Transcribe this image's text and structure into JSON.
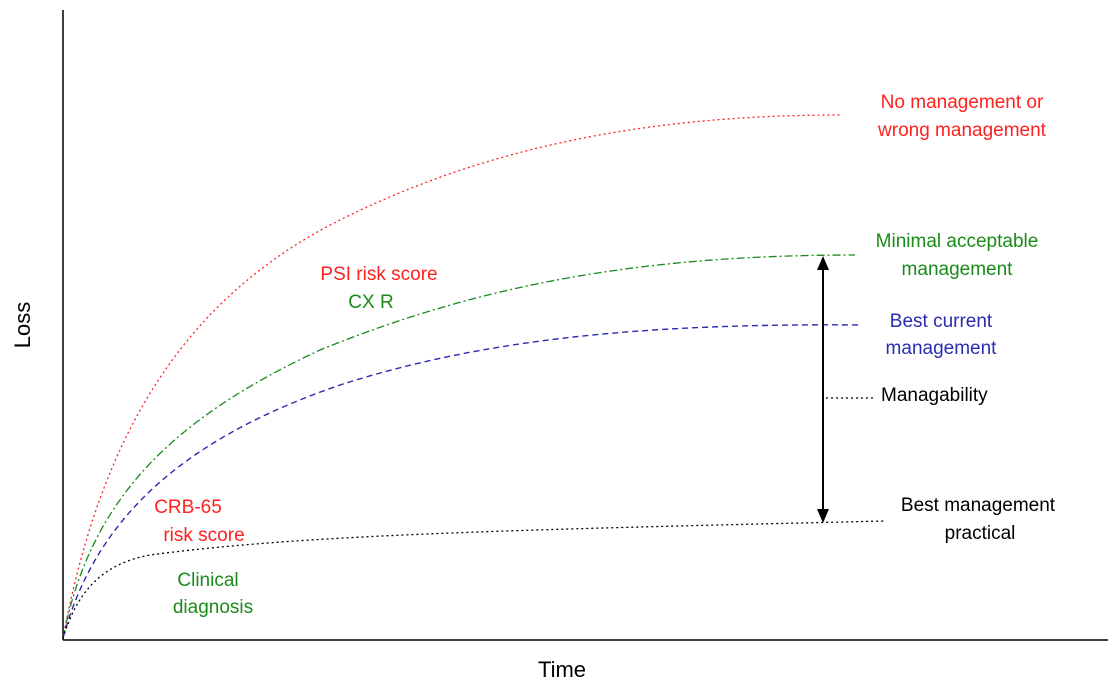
{
  "axes": {
    "x_label": "Time",
    "y_label": "Loss"
  },
  "colors": {
    "red": "#ff2020",
    "green": "#1a8a1a",
    "blue": "#2b2bb0",
    "black": "#000000"
  },
  "curves": [
    {
      "id": "no-management",
      "label_lines": [
        "No management or",
        "wrong management"
      ],
      "color": "red",
      "style": "dotted"
    },
    {
      "id": "minimal-acceptable",
      "label_lines": [
        "Minimal acceptable",
        "management"
      ],
      "color": "green",
      "style": "dash-dot"
    },
    {
      "id": "best-current",
      "label_lines": [
        "Best current",
        "management"
      ],
      "color": "blue",
      "style": "dashed"
    },
    {
      "id": "best-practical",
      "label_lines": [
        "Best management",
        "practical"
      ],
      "color": "black",
      "style": "dotted"
    }
  ],
  "annotations": {
    "psi": "PSI risk score",
    "cxr": "CX R",
    "crb_line1": "CRB-65",
    "crb_line2": "risk score",
    "clinical_line1": "Clinical",
    "clinical_line2": "diagnosis",
    "managability": "Managability"
  }
}
